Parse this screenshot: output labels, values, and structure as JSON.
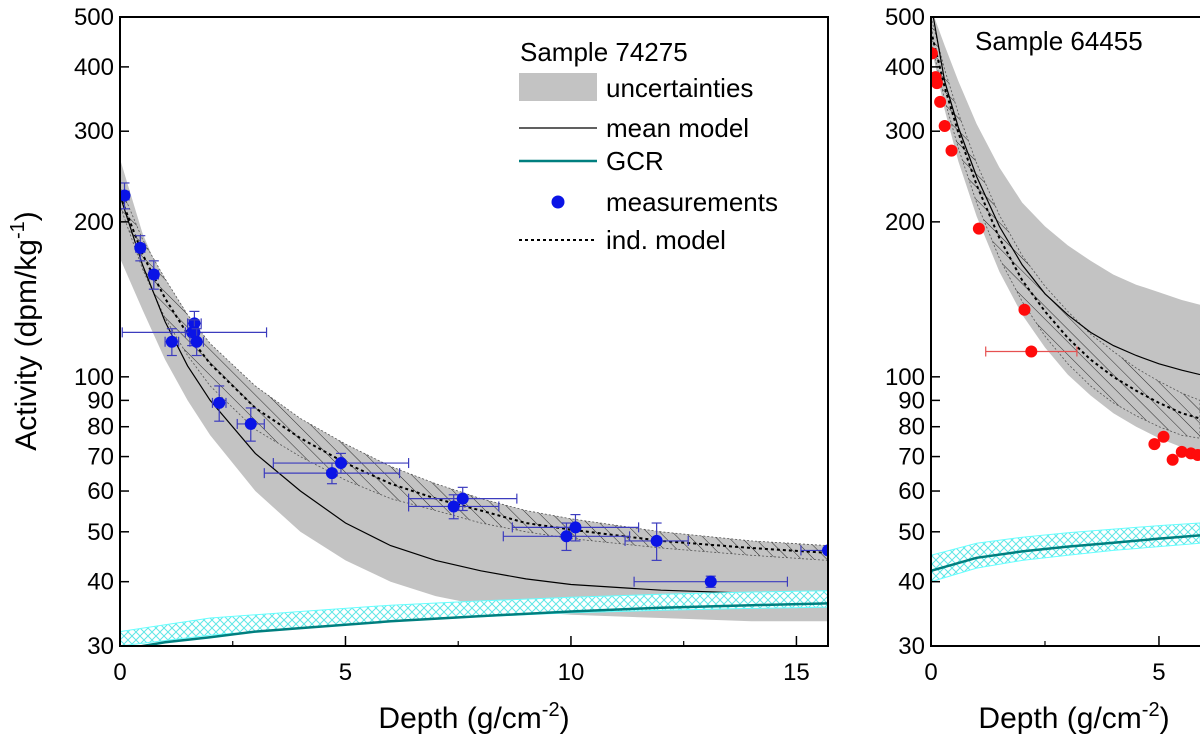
{
  "chart_data": [
    {
      "type": "scatter",
      "title": "Sample 74275",
      "xlabel": "Depth (g/cm",
      "xlabel_sup": "-2",
      "xlabel_end": ")",
      "ylabel": "Activity (dpm/kg",
      "ylabel_sup": "-1",
      "ylabel_end": ")",
      "yscale": "log",
      "xlim": [
        0,
        15.7
      ],
      "ylim": [
        30,
        500
      ],
      "x_ticks": [
        0,
        5,
        10,
        15
      ],
      "x_tick_labels": [
        "0",
        "5",
        "10",
        "15"
      ],
      "y_ticks": [
        30,
        40,
        50,
        60,
        70,
        80,
        90,
        100,
        200,
        300,
        400,
        500
      ],
      "y_tick_labels": [
        "30",
        "40",
        "50",
        "60",
        "70",
        "80",
        "90",
        "100",
        "200",
        "300",
        "400",
        "500"
      ],
      "legend": {
        "position": "top-right",
        "title": "Sample 74275",
        "entries": [
          "uncertainties",
          "mean model",
          "GCR",
          "measurements",
          "ind. model"
        ]
      },
      "series": [
        {
          "name": "uncertainties",
          "kind": "band",
          "x": [
            0,
            0.5,
            1,
            1.5,
            2,
            3,
            4,
            5,
            6,
            7,
            8,
            9,
            10,
            12,
            14,
            15.7
          ],
          "lower": [
            170,
            135,
            108,
            90,
            77,
            60,
            50,
            44,
            40,
            37.5,
            36,
            35,
            34.5,
            34,
            33.5,
            33.5
          ],
          "upper": [
            265,
            190,
            150,
            125,
            108,
            88,
            76,
            67,
            61,
            57,
            54,
            52,
            50,
            48,
            46,
            45
          ]
        },
        {
          "name": "ind. model uncertainty",
          "kind": "hatched-band",
          "x": [
            0,
            0.5,
            1,
            1.5,
            2,
            3,
            4,
            5,
            6,
            7,
            8,
            9,
            10,
            12,
            14,
            15.7
          ],
          "lower": [
            215,
            162,
            130,
            110,
            96,
            79,
            70,
            63,
            58,
            55,
            52,
            50,
            48.5,
            46.5,
            45,
            44
          ],
          "upper": [
            235,
            185,
            155,
            132,
            116,
            96,
            83,
            74,
            67,
            62,
            58,
            55,
            53,
            50,
            48,
            47
          ]
        },
        {
          "name": "mean model",
          "kind": "line",
          "x": [
            0,
            0.5,
            1,
            1.5,
            2,
            3,
            4,
            5,
            6,
            7,
            8,
            9,
            10,
            12,
            14,
            15.7
          ],
          "y": [
            225,
            165,
            128,
            105,
            90,
            71,
            60,
            52,
            47,
            44,
            42,
            40.5,
            39.5,
            38.5,
            38,
            37.5
          ]
        },
        {
          "name": "ind. model",
          "kind": "dotted-line",
          "x": [
            0,
            0.5,
            1,
            1.5,
            2,
            3,
            4,
            5,
            6,
            7,
            8,
            9,
            10,
            12,
            14,
            15.7
          ],
          "y": [
            225,
            173,
            142,
            121,
            106,
            87,
            76,
            68,
            62,
            58,
            55,
            52,
            50.5,
            48,
            46.5,
            45.5
          ]
        },
        {
          "name": "GCR uncertainty",
          "kind": "crosshatch-band",
          "x": [
            0,
            2,
            4,
            6,
            8,
            10,
            12,
            14,
            15.7
          ],
          "lower": [
            30,
            31.5,
            32.5,
            33.5,
            34.2,
            34.8,
            35.2,
            35.5,
            35.7
          ],
          "upper": [
            32,
            34,
            35,
            36,
            36.7,
            37.3,
            37.8,
            38.2,
            38.4
          ]
        },
        {
          "name": "GCR",
          "kind": "line",
          "x": [
            0,
            1,
            2,
            3,
            4,
            6,
            8,
            10,
            12,
            14,
            15.7
          ],
          "y": [
            29.5,
            30.5,
            31.2,
            32,
            32.5,
            33.5,
            34.3,
            35,
            35.6,
            36,
            36.3
          ]
        },
        {
          "name": "measurements",
          "kind": "points",
          "points": [
            {
              "x": 0.1,
              "y": 225,
              "xerr": 0.1,
              "yerr": 13
            },
            {
              "x": 0.45,
              "y": 178,
              "xerr": 0.1,
              "yerr": 10
            },
            {
              "x": 0.75,
              "y": 158,
              "xerr": 0.1,
              "yerr": 10
            },
            {
              "x": 1.15,
              "y": 117,
              "xerr": 0.15,
              "yerr": 7
            },
            {
              "x": 1.6,
              "y": 122,
              "xerr": 0.15,
              "yerr": 7
            },
            {
              "x": 1.65,
              "y": 127,
              "xerr": 0.15,
              "yerr": 7
            },
            {
              "x": 1.65,
              "y": 122,
              "xerr": 1.6,
              "yerr": 7
            },
            {
              "x": 1.7,
              "y": 117,
              "xerr": 0.15,
              "yerr": 7
            },
            {
              "x": 2.2,
              "y": 89,
              "xerr": 0.15,
              "yerr": 7
            },
            {
              "x": 2.9,
              "y": 81,
              "xerr": 0.3,
              "yerr": 6
            },
            {
              "x": 4.7,
              "y": 65,
              "xerr": 1.5,
              "yerr": 3
            },
            {
              "x": 4.9,
              "y": 68,
              "xerr": 1.5,
              "yerr": 3
            },
            {
              "x": 7.4,
              "y": 56,
              "xerr": 1.0,
              "yerr": 3
            },
            {
              "x": 7.6,
              "y": 58,
              "xerr": 1.2,
              "yerr": 3
            },
            {
              "x": 9.9,
              "y": 49,
              "xerr": 1.4,
              "yerr": 3
            },
            {
              "x": 10.1,
              "y": 51,
              "xerr": 1.4,
              "yerr": 3
            },
            {
              "x": 11.9,
              "y": 48,
              "xerr": 0.7,
              "yerr": 4
            },
            {
              "x": 13.1,
              "y": 40,
              "xerr": 1.7,
              "yerr": 1
            },
            {
              "x": 15.7,
              "y": 46,
              "xerr": 0.6,
              "yerr": 0
            }
          ]
        }
      ]
    },
    {
      "type": "scatter",
      "title": "Sample 64455",
      "xlabel": "Depth (g/cm",
      "xlabel_sup": "-2",
      "xlabel_end": ")",
      "yscale": "log",
      "xlim": [
        0,
        5.9
      ],
      "ylim": [
        30,
        500
      ],
      "x_ticks": [
        0,
        5
      ],
      "x_tick_labels": [
        "0",
        "5"
      ],
      "y_ticks": [
        30,
        40,
        50,
        60,
        70,
        80,
        90,
        100,
        200,
        300,
        400,
        500
      ],
      "y_tick_labels": [
        "30",
        "40",
        "50",
        "60",
        "70",
        "80",
        "90",
        "100",
        "200",
        "300",
        "400",
        "500"
      ],
      "series": [
        {
          "name": "uncertainties",
          "kind": "band",
          "x": [
            0,
            0.3,
            0.6,
            1,
            1.5,
            2,
            2.5,
            3,
            3.5,
            4,
            4.5,
            5,
            5.5,
            5.9
          ],
          "lower": [
            440,
            330,
            262,
            205,
            160,
            132,
            114,
            101,
            92,
            85,
            80,
            76,
            73,
            72
          ],
          "upper": [
            520,
            440,
            375,
            310,
            255,
            218,
            196,
            180,
            168,
            158,
            151,
            146,
            141,
            138
          ]
        },
        {
          "name": "ind. model uncertainty",
          "kind": "hatched-band",
          "x": [
            0,
            0.3,
            0.6,
            1,
            1.5,
            2,
            2.5,
            3,
            3.5,
            4,
            4.5,
            5,
            5.5,
            5.9
          ],
          "lower": [
            450,
            345,
            278,
            218,
            170,
            140,
            120,
            106,
            96,
            89,
            84,
            80,
            77,
            76
          ],
          "upper": [
            500,
            395,
            325,
            260,
            206,
            172,
            150,
            134,
            121,
            112,
            104,
            98,
            93,
            90
          ]
        },
        {
          "name": "mean model",
          "kind": "line",
          "x": [
            0.05,
            0.3,
            0.6,
            1,
            1.5,
            2,
            2.5,
            3,
            3.5,
            4,
            4.5,
            5,
            5.5,
            5.9
          ],
          "y": [
            500,
            375,
            305,
            245,
            196,
            165,
            145,
            132,
            122,
            115,
            110,
            106,
            103,
            101
          ]
        },
        {
          "name": "ind. model",
          "kind": "dotted-line",
          "x": [
            0,
            0.3,
            0.6,
            1,
            1.5,
            2,
            2.5,
            3,
            3.5,
            4,
            4.5,
            5,
            5.5,
            5.9
          ],
          "y": [
            470,
            365,
            298,
            236,
            186,
            154,
            134,
            119,
            108,
            100,
            94,
            89,
            85,
            83
          ]
        },
        {
          "name": "GCR uncertainty",
          "kind": "crosshatch-band",
          "x": [
            0,
            1,
            2,
            3,
            4,
            5,
            5.9
          ],
          "lower": [
            40,
            42.5,
            44,
            45,
            46,
            46.8,
            47.5
          ],
          "upper": [
            45,
            47.5,
            48.8,
            49.8,
            50.6,
            51.4,
            52
          ]
        },
        {
          "name": "GCR",
          "kind": "line",
          "x": [
            0,
            1,
            2,
            3,
            4,
            5,
            5.9
          ],
          "y": [
            42,
            44.5,
            45.8,
            46.8,
            47.6,
            48.5,
            49.2
          ]
        },
        {
          "name": "measurements",
          "kind": "points",
          "points": [
            {
              "x": 0.02,
              "y": 425,
              "xerr": 0,
              "yerr": 0
            },
            {
              "x": 0.1,
              "y": 382,
              "xerr": 0,
              "yerr": 0
            },
            {
              "x": 0.13,
              "y": 372,
              "xerr": 0,
              "yerr": 0
            },
            {
              "x": 0.2,
              "y": 342,
              "xerr": 0,
              "yerr": 0
            },
            {
              "x": 0.3,
              "y": 307,
              "xerr": 0,
              "yerr": 0
            },
            {
              "x": 0.45,
              "y": 275,
              "xerr": 0,
              "yerr": 0
            },
            {
              "x": 1.05,
              "y": 194,
              "xerr": 0,
              "yerr": 0
            },
            {
              "x": 2.05,
              "y": 135,
              "xerr": 0,
              "yerr": 0
            },
            {
              "x": 2.2,
              "y": 112,
              "xerr": 1.0,
              "yerr": 0
            },
            {
              "x": 4.9,
              "y": 74,
              "xerr": 0,
              "yerr": 0
            },
            {
              "x": 5.1,
              "y": 76.5,
              "xerr": 0,
              "yerr": 0
            },
            {
              "x": 5.3,
              "y": 69,
              "xerr": 0,
              "yerr": 0
            },
            {
              "x": 5.5,
              "y": 71.5,
              "xerr": 0,
              "yerr": 0
            },
            {
              "x": 5.7,
              "y": 71,
              "xerr": 0,
              "yerr": 0
            },
            {
              "x": 5.85,
              "y": 70.5,
              "xerr": 0,
              "yerr": 0
            }
          ]
        }
      ]
    }
  ],
  "colors": {
    "uncertainty_band": "#c3c3c3",
    "mean_model": "#000000",
    "gcr": "#007f7f",
    "gcr_band": "#66ffff",
    "measurements_74275": "#0a14e6",
    "errorbars_74275": "#3c3cbe",
    "measurements_64455": "#ff0b0b",
    "errorbars_64455": "#e65050"
  }
}
